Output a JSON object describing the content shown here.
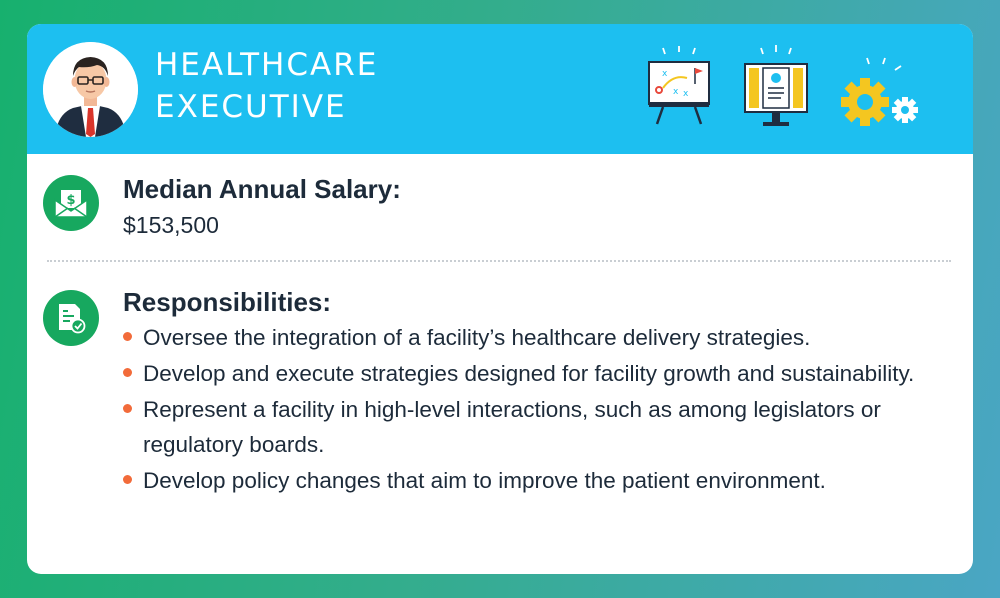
{
  "header": {
    "title_line1": "HEALTHCARE",
    "title_line2": "EXECUTIVE"
  },
  "icons": {
    "avatar": "executive-avatar",
    "strategy": "strategy-board-icon",
    "profile": "profile-monitor-icon",
    "settings": "gears-icon",
    "salary": "money-envelope-icon",
    "responsibilities": "document-check-icon"
  },
  "salary": {
    "label": "Median Annual Salary:",
    "value": "$153,500"
  },
  "responsibilities": {
    "label": "Responsibilities:",
    "items": [
      "Oversee the integration of a facility’s healthcare delivery strategies.",
      "Develop and execute strategies designed for facility growth and sustainability.",
      "Represent a facility in high-level interactions, such as among legislators or regulatory boards.",
      "Develop policy changes that aim to improve the patient environment."
    ]
  },
  "colors": {
    "header": "#1dbff0",
    "accent_green": "#17a85f",
    "bullet": "#f26b3a",
    "text": "#1d2b3a"
  }
}
